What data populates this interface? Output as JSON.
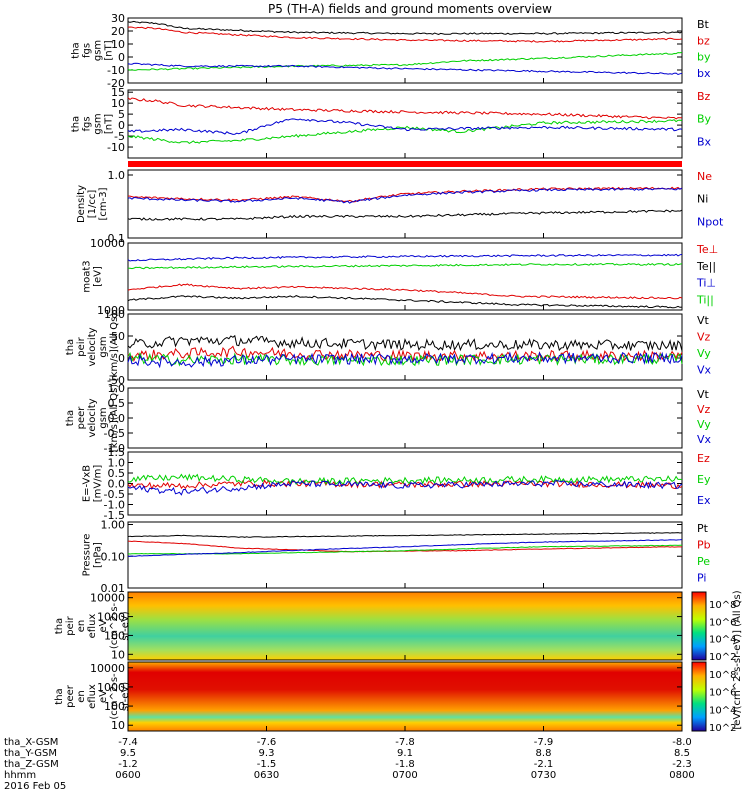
{
  "title": "P5 (TH-A) fields and ground moments overview",
  "colors": {
    "black": "#000000",
    "red": "#e00000",
    "green": "#00d000",
    "blue": "#0000d0"
  },
  "chart_data": [
    {
      "type": "line",
      "ylabel": [
        "tha",
        "fgs",
        "gsm",
        "[nT]"
      ],
      "ylim": [
        -20,
        30
      ],
      "yticks": [
        "30",
        "20",
        "10",
        "0",
        "-10",
        "-20"
      ],
      "series": [
        {
          "name": "Bt",
          "color": "black",
          "x": [
            0,
            0.05,
            0.1,
            0.3,
            0.5,
            0.75,
            1
          ],
          "y": [
            27,
            26,
            22,
            19,
            18,
            18,
            19
          ]
        },
        {
          "name": "bz",
          "color": "red",
          "x": [
            0,
            0.05,
            0.1,
            0.3,
            0.5,
            0.75,
            1
          ],
          "y": [
            23,
            22,
            19,
            15,
            13,
            12,
            14
          ]
        },
        {
          "name": "by",
          "color": "green",
          "x": [
            0,
            0.1,
            0.3,
            0.5,
            0.6,
            0.75,
            1
          ],
          "y": [
            -10,
            -9,
            -7,
            -6,
            -3,
            -1,
            3
          ]
        },
        {
          "name": "bx",
          "color": "blue",
          "x": [
            0,
            0.1,
            0.3,
            0.5,
            0.75,
            1
          ],
          "y": [
            -5,
            -7,
            -7,
            -9,
            -11,
            -13
          ]
        }
      ]
    },
    {
      "type": "line",
      "ylabel": [
        "tha",
        "fgs",
        "gsm",
        "[nT]"
      ],
      "ylim": [
        -15,
        16
      ],
      "yticks": [
        "15",
        "10",
        "5",
        "0",
        "-5",
        "-10"
      ],
      "series": [
        {
          "name": "Bz",
          "color": "red",
          "x": [
            0,
            0.05,
            0.1,
            0.3,
            0.5,
            0.75,
            1
          ],
          "y": [
            12,
            11,
            9,
            7,
            6,
            5,
            3
          ]
        },
        {
          "name": "By",
          "color": "green",
          "x": [
            0,
            0.1,
            0.2,
            0.3,
            0.5,
            0.6,
            0.75,
            1
          ],
          "y": [
            -5,
            -8,
            -7,
            -5,
            -1,
            -3,
            1,
            2
          ]
        },
        {
          "name": "Bx",
          "color": "blue",
          "x": [
            0,
            0.1,
            0.2,
            0.25,
            0.3,
            0.4,
            0.5,
            0.75,
            1
          ],
          "y": [
            -3,
            -2,
            -4,
            0,
            3,
            1,
            -2,
            -1,
            -2
          ]
        }
      ]
    },
    {
      "type": "line",
      "ylabel": [
        "Density",
        "[1/cc]",
        "[cm-3]"
      ],
      "ylim": [
        0.1,
        1.2
      ],
      "yscale": "log",
      "yticks": [
        "1.0",
        "0.1"
      ],
      "series": [
        {
          "name": "Ne",
          "color": "red",
          "x": [
            0,
            0.1,
            0.2,
            0.3,
            0.4,
            0.5,
            0.6,
            0.75,
            1
          ],
          "y": [
            0.45,
            0.42,
            0.4,
            0.45,
            0.38,
            0.5,
            0.55,
            0.6,
            0.62
          ]
        },
        {
          "name": "Ni",
          "color": "black",
          "x": [
            0,
            0.1,
            0.2,
            0.3,
            0.5,
            0.75,
            1
          ],
          "y": [
            0.2,
            0.2,
            0.2,
            0.22,
            0.22,
            0.25,
            0.27
          ]
        },
        {
          "name": "Npot",
          "color": "blue",
          "x": [
            0,
            0.1,
            0.2,
            0.3,
            0.4,
            0.5,
            0.6,
            0.75,
            1
          ],
          "y": [
            0.43,
            0.4,
            0.38,
            0.43,
            0.37,
            0.48,
            0.53,
            0.58,
            0.6
          ]
        }
      ]
    },
    {
      "type": "line",
      "ylabel": [
        "moat3",
        "[eV]"
      ],
      "ylim": [
        1000,
        10000
      ],
      "yscale": "log",
      "yticks": [
        "10000",
        "1000"
      ],
      "series": [
        {
          "name": "Te⊥",
          "color": "red",
          "x": [
            0,
            0.1,
            0.2,
            0.3,
            0.5,
            0.7,
            1
          ],
          "y": [
            2000,
            2400,
            2100,
            2200,
            2000,
            1600,
            1500
          ]
        },
        {
          "name": "Te||",
          "color": "black",
          "x": [
            0,
            0.1,
            0.2,
            0.3,
            0.5,
            0.7,
            1
          ],
          "y": [
            1400,
            1600,
            1500,
            1600,
            1400,
            1200,
            1100
          ]
        },
        {
          "name": "Ti⊥",
          "color": "blue",
          "x": [
            0,
            0.2,
            0.5,
            0.75,
            1
          ],
          "y": [
            5500,
            6000,
            6300,
            6500,
            6600
          ]
        },
        {
          "name": "Ti||",
          "color": "green",
          "x": [
            0,
            0.2,
            0.5,
            0.75,
            1
          ],
          "y": [
            4200,
            4400,
            4600,
            4800,
            4800
          ]
        }
      ]
    },
    {
      "type": "line",
      "ylabel": [
        "tha",
        "peir",
        "velocity",
        "gsm",
        "[km/s](All Qs)"
      ],
      "ylim": [
        -50,
        100
      ],
      "yticks": [
        "100",
        "50",
        "0",
        "-50"
      ],
      "series": [
        {
          "name": "Vt",
          "color": "black",
          "x": [
            0,
            0.1,
            0.2,
            0.3,
            0.5,
            0.75,
            1
          ],
          "y": [
            30,
            40,
            40,
            35,
            30,
            30,
            28
          ]
        },
        {
          "name": "Vz",
          "color": "red",
          "x": [
            0,
            0.1,
            0.2,
            0.3,
            0.5,
            0.75,
            1
          ],
          "y": [
            5,
            10,
            15,
            10,
            5,
            5,
            5
          ]
        },
        {
          "name": "Vy",
          "color": "green",
          "x": [
            0,
            0.1,
            0.2,
            0.3,
            0.5,
            0.75,
            1
          ],
          "y": [
            0,
            -5,
            -3,
            -5,
            -5,
            -3,
            -2
          ]
        },
        {
          "name": "Vx",
          "color": "blue",
          "x": [
            0,
            0.1,
            0.2,
            0.3,
            0.5,
            0.75,
            1
          ],
          "y": [
            -5,
            -10,
            -5,
            -3,
            -2,
            0,
            0
          ]
        }
      ]
    },
    {
      "type": "line",
      "ylabel": [
        "tha",
        "peer",
        "velocity",
        "gsm",
        "[km/s](All Qs)"
      ],
      "ylim": [
        -1,
        1
      ],
      "yticks": [
        "1.0",
        "0.5",
        "0.0",
        "-0.5",
        "-1.0"
      ],
      "series": [
        {
          "name": "Vt",
          "color": "black",
          "x": [],
          "y": []
        },
        {
          "name": "Vz",
          "color": "red",
          "x": [],
          "y": []
        },
        {
          "name": "Vy",
          "color": "green",
          "x": [],
          "y": []
        },
        {
          "name": "Vx",
          "color": "blue",
          "x": [],
          "y": []
        }
      ]
    },
    {
      "type": "line",
      "ylabel": [
        "E=-VxB",
        "[mV/m]"
      ],
      "ylim": [
        -1.5,
        1.5
      ],
      "yticks": [
        "1.5",
        "1.0",
        "0.5",
        "0.0",
        "-0.5",
        "-1.0",
        "-1.5"
      ],
      "series": [
        {
          "name": "Ez",
          "color": "red",
          "x": [
            0,
            0.1,
            0.2,
            0.3,
            0.5,
            0.75,
            1
          ],
          "y": [
            -0.1,
            -0.1,
            0,
            0,
            -0.05,
            0,
            -0.1
          ]
        },
        {
          "name": "Ey",
          "color": "green",
          "x": [
            0,
            0.1,
            0.2,
            0.3,
            0.5,
            0.75,
            1
          ],
          "y": [
            0.2,
            0.3,
            0.2,
            0.1,
            0.15,
            0.2,
            0.2
          ]
        },
        {
          "name": "Ex",
          "color": "blue",
          "x": [
            0,
            0.1,
            0.2,
            0.3,
            0.5,
            0.75,
            1
          ],
          "y": [
            -0.2,
            -0.4,
            -0.2,
            0,
            -0.1,
            0,
            -0.1
          ]
        }
      ]
    },
    {
      "type": "line",
      "ylabel": [
        "Pressure",
        "[nPa]"
      ],
      "ylim": [
        0.01,
        1.2
      ],
      "yscale": "log",
      "yticks": [
        "1.00",
        "0.10",
        "0.01"
      ],
      "series": [
        {
          "name": "Pt",
          "color": "black",
          "x": [
            0,
            0.1,
            0.2,
            0.5,
            0.75,
            1
          ],
          "y": [
            0.42,
            0.45,
            0.4,
            0.45,
            0.5,
            0.55
          ]
        },
        {
          "name": "Pb",
          "color": "red",
          "x": [
            0,
            0.1,
            0.2,
            0.4,
            0.6,
            1
          ],
          "y": [
            0.3,
            0.25,
            0.18,
            0.14,
            0.15,
            0.2
          ]
        },
        {
          "name": "Pe",
          "color": "green",
          "x": [
            0,
            0.2,
            0.5,
            0.75,
            1
          ],
          "y": [
            0.12,
            0.12,
            0.15,
            0.2,
            0.22
          ]
        },
        {
          "name": "Pi",
          "color": "blue",
          "x": [
            0,
            0.2,
            0.5,
            0.75,
            1
          ],
          "y": [
            0.1,
            0.13,
            0.2,
            0.28,
            0.33
          ]
        }
      ]
    },
    {
      "type": "heatmap",
      "ylabel": [
        "tha",
        "peir",
        "en",
        "eflux",
        "eV",
        "(cm^2-s-",
        "sr-eV)"
      ],
      "ylim": [
        5,
        20000
      ],
      "yscale": "log",
      "yticks": [
        "10000",
        "1000",
        "100",
        "10"
      ],
      "colorbar_ticks": [
        "10^8",
        "10^6",
        "10^4",
        "10^2"
      ],
      "colorbar_label": "[eV/(cm^2-s-sr-eV)] (All Qs)"
    },
    {
      "type": "heatmap",
      "ylabel": [
        "tha",
        "peer",
        "en",
        "eflux",
        "eV",
        "(cm^2-s-",
        "sr-eV)"
      ],
      "ylim": [
        5,
        20000
      ],
      "yscale": "log",
      "yticks": [
        "10000",
        "1000",
        "100",
        "10"
      ],
      "colorbar_ticks": [
        "10^8",
        "10^6",
        "10^4",
        "10^2"
      ],
      "colorbar_label": "[eV/(cm^2-s-sr-eV)] (All Qs)"
    }
  ],
  "xaxis": {
    "rows": [
      {
        "label": "tha_X-GSM",
        "values": [
          "-7.4",
          "-7.6",
          "-7.8",
          "-7.9",
          "-8.0"
        ]
      },
      {
        "label": "tha_Y-GSM",
        "values": [
          "9.5",
          "9.3",
          "9.1",
          "8.8",
          "8.5"
        ]
      },
      {
        "label": "tha_Z-GSM",
        "values": [
          "-1.2",
          "-1.5",
          "-1.8",
          "-2.1",
          "-2.3"
        ]
      },
      {
        "label": "hhmm",
        "values": [
          "0600",
          "0630",
          "0700",
          "0730",
          "0800"
        ]
      }
    ],
    "date": "2016 Feb 05"
  }
}
